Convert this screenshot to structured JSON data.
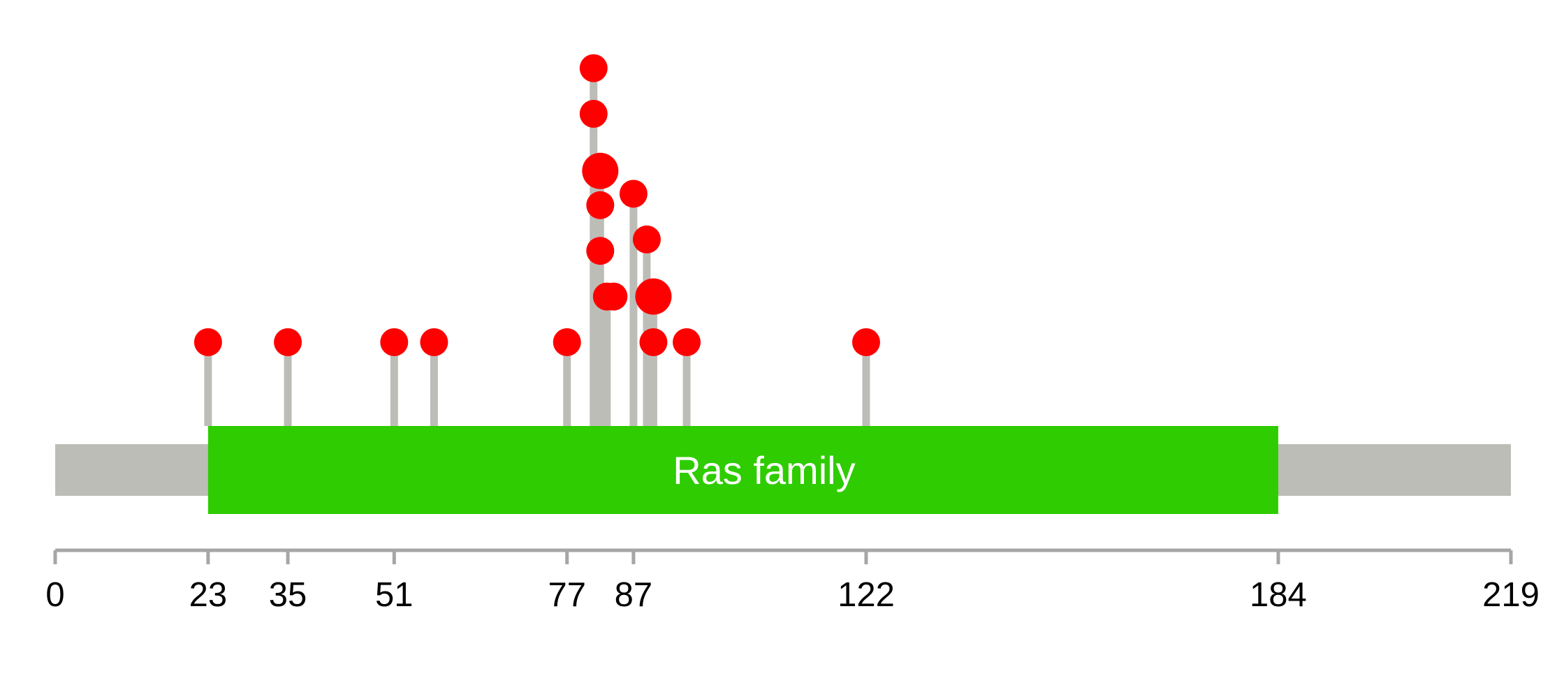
{
  "chart_data": {
    "type": "lollipop",
    "protein_length": 219,
    "xlim": [
      0,
      219
    ],
    "domains": [
      {
        "name": "Ras family",
        "start": 23,
        "end": 184,
        "color": "#2ecc00"
      }
    ],
    "backbone_color": "#bdbdb8",
    "lollipop_color": "#ff0000",
    "stem_color": "#bdbdb8",
    "axis_color": "#a6a6a6",
    "ticks": [
      {
        "value": 0,
        "label": "0"
      },
      {
        "value": 23,
        "label": "23"
      },
      {
        "value": 35,
        "label": "35"
      },
      {
        "value": 51,
        "label": "51"
      },
      {
        "value": 77,
        "label": "77"
      },
      {
        "value": 87,
        "label": "87"
      },
      {
        "value": 122,
        "label": "122"
      },
      {
        "value": 184,
        "label": "184"
      },
      {
        "value": 219,
        "label": "219"
      }
    ],
    "stems": [
      {
        "position": 23,
        "height": 1
      },
      {
        "position": 35,
        "height": 1
      },
      {
        "position": 51,
        "height": 1
      },
      {
        "position": 57,
        "height": 1
      },
      {
        "position": 77,
        "height": 1
      },
      {
        "position": 81,
        "height": 7
      },
      {
        "position": 82,
        "height": 5
      },
      {
        "position": 83,
        "height": 2
      },
      {
        "position": 87,
        "height": 4
      },
      {
        "position": 89,
        "height": 3
      },
      {
        "position": 90,
        "height": 2
      },
      {
        "position": 95,
        "height": 1
      },
      {
        "position": 122,
        "height": 1
      }
    ],
    "mutations": [
      {
        "position": 23,
        "level": 1,
        "size": 1
      },
      {
        "position": 35,
        "level": 1,
        "size": 1
      },
      {
        "position": 51,
        "level": 1,
        "size": 1
      },
      {
        "position": 57,
        "level": 1,
        "size": 1
      },
      {
        "position": 77,
        "level": 1,
        "size": 1
      },
      {
        "position": 81,
        "level": 7,
        "size": 1
      },
      {
        "position": 81,
        "level": 6,
        "size": 1
      },
      {
        "position": 82,
        "level": 4.75,
        "size": 1.3
      },
      {
        "position": 82,
        "level": 4,
        "size": 1
      },
      {
        "position": 82,
        "level": 3,
        "size": 1
      },
      {
        "position": 83,
        "level": 2,
        "size": 1
      },
      {
        "position": 84,
        "level": 2,
        "size": 1
      },
      {
        "position": 87,
        "level": 4.25,
        "size": 1
      },
      {
        "position": 89,
        "level": 3.25,
        "size": 1
      },
      {
        "position": 90,
        "level": 2,
        "size": 1.3
      },
      {
        "position": 90,
        "level": 1,
        "size": 1
      },
      {
        "position": 95,
        "level": 1,
        "size": 1
      },
      {
        "position": 122,
        "level": 1,
        "size": 1
      }
    ]
  }
}
